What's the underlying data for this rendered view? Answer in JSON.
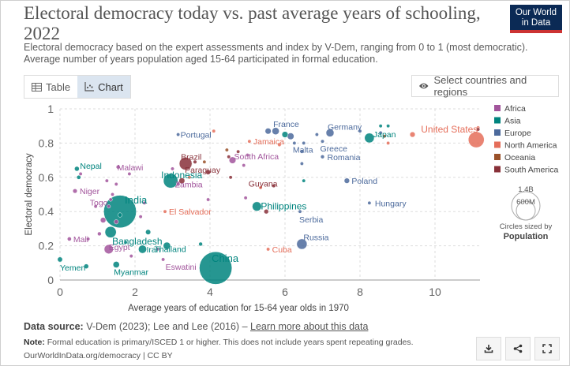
{
  "header": {
    "title": "Electoral democracy today vs. past average years of schooling, 2022",
    "subtitle_line1": "Electoral democracy based on the expert assessments and index by V-Dem, ranging from 0 to 1 (most democratic).",
    "subtitle_line2": "Average number of years population aged 15-64 participated in formal education.",
    "logo_line1": "Our World",
    "logo_line2": "in Data"
  },
  "tabs": [
    {
      "label": "Table",
      "icon": "table-icon",
      "active": false
    },
    {
      "label": "Chart",
      "icon": "chart-icon",
      "active": true
    }
  ],
  "select_countries_label": "Select countries and regions",
  "chart_data": {
    "type": "scatter",
    "xlabel": "Average years of education for 15-64 year olds in 1970",
    "ylabel": "Electoral democracy",
    "xlim": [
      0,
      11.2
    ],
    "ylim": [
      0,
      1
    ],
    "xticks": [
      0,
      2,
      4,
      6,
      8,
      10
    ],
    "yticks": [
      0,
      0.2,
      0.4,
      0.6,
      0.8,
      1
    ],
    "grid": true,
    "legend_position": "right",
    "colors": {
      "Africa": "#a2559c",
      "Asia": "#00847e",
      "Europe": "#4c6a9c",
      "North America": "#e56e5a",
      "Oceania": "#9a5129",
      "South America": "#883039"
    },
    "legend": [
      "Africa",
      "Asia",
      "Europe",
      "North America",
      "Oceania",
      "South America"
    ],
    "size_legend": {
      "value_large": "1.4B",
      "value_small": "600M",
      "caption": "Circles sized by",
      "caption_bold": "Population"
    },
    "points": [
      {
        "x": 11.1,
        "y": 0.82,
        "region": "North America",
        "label": "United States",
        "pop": 333
      },
      {
        "x": 9.4,
        "y": 0.85,
        "region": "North America",
        "pop": 38
      },
      {
        "x": 11.15,
        "y": 0.89,
        "region": "North America",
        "pop": 5
      },
      {
        "x": 4.15,
        "y": 0.07,
        "region": "Asia",
        "label": "China",
        "pop": 1410
      },
      {
        "x": 1.6,
        "y": 0.4,
        "region": "Asia",
        "label": "India",
        "pop": 1410
      },
      {
        "x": 1.6,
        "y": 0.38,
        "region": "Asia",
        "pop": 25
      },
      {
        "x": 1.35,
        "y": 0.28,
        "region": "Asia",
        "label": "Bangladesh",
        "pop": 170
      },
      {
        "x": 1.35,
        "y": 0.47,
        "region": "Africa",
        "pop": 5
      },
      {
        "x": 2.35,
        "y": 0.28,
        "region": "Asia",
        "pop": 35
      },
      {
        "x": 2.95,
        "y": 0.58,
        "region": "Asia",
        "label": "Indonesia",
        "pop": 275
      },
      {
        "x": 2.85,
        "y": 0.2,
        "region": "Asia",
        "label": "Thailand",
        "pop": 70
      },
      {
        "x": 5.25,
        "y": 0.43,
        "region": "Asia",
        "label": "Philippines",
        "pop": 115
      },
      {
        "x": 8.25,
        "y": 0.83,
        "region": "Asia",
        "label": "Japan",
        "pop": 125
      },
      {
        "x": 6.0,
        "y": 0.85,
        "region": "Asia",
        "pop": 50
      },
      {
        "x": 2.2,
        "y": 0.18,
        "region": "Asia",
        "label": "Iran",
        "pop": 88
      },
      {
        "x": 1.5,
        "y": 0.09,
        "region": "Asia",
        "label": "Myanmar",
        "pop": 54
      },
      {
        "x": 0.0,
        "y": 0.12,
        "region": "Asia",
        "label": "Yemen",
        "pop": 33
      },
      {
        "x": 0.7,
        "y": 0.08,
        "region": "Asia",
        "pop": 30
      },
      {
        "x": 0.45,
        "y": 0.65,
        "region": "Asia",
        "label": "Nepal",
        "pop": 30
      },
      {
        "x": 0.5,
        "y": 0.6,
        "region": "Asia",
        "pop": 22
      },
      {
        "x": 3.75,
        "y": 0.21,
        "region": "Asia",
        "pop": 20
      },
      {
        "x": 1.75,
        "y": 0.22,
        "region": "Asia",
        "pop": 10
      },
      {
        "x": 8.55,
        "y": 0.9,
        "region": "Asia",
        "pop": 8
      },
      {
        "x": 8.75,
        "y": 0.9,
        "region": "Asia",
        "pop": 5
      },
      {
        "x": 6.5,
        "y": 0.58,
        "region": "Asia",
        "pop": 10
      },
      {
        "x": 6.45,
        "y": 0.21,
        "region": "Europe",
        "label": "Russia",
        "pop": 144
      },
      {
        "x": 5.75,
        "y": 0.87,
        "region": "Europe",
        "label": "France",
        "pop": 68
      },
      {
        "x": 5.55,
        "y": 0.87,
        "region": "Europe",
        "pop": 48
      },
      {
        "x": 7.2,
        "y": 0.86,
        "region": "Europe",
        "label": "Germany",
        "pop": 84
      },
      {
        "x": 6.15,
        "y": 0.84,
        "region": "Europe",
        "pop": 60
      },
      {
        "x": 7.0,
        "y": 0.81,
        "region": "Europe",
        "label": "Greece",
        "pop": 10
      },
      {
        "x": 7.0,
        "y": 0.72,
        "region": "Europe",
        "label": "Romania",
        "pop": 19
      },
      {
        "x": 7.65,
        "y": 0.58,
        "region": "Europe",
        "label": "Poland",
        "pop": 38
      },
      {
        "x": 8.25,
        "y": 0.45,
        "region": "Europe",
        "label": "Hungary",
        "pop": 10
      },
      {
        "x": 6.25,
        "y": 0.8,
        "region": "Europe",
        "label": "Malta",
        "pop": 1
      },
      {
        "x": 6.5,
        "y": 0.8,
        "region": "Europe",
        "pop": 9
      },
      {
        "x": 6.4,
        "y": 0.4,
        "region": "Europe",
        "label": "Serbia",
        "pop": 7
      },
      {
        "x": 3.15,
        "y": 0.85,
        "region": "Europe",
        "label": "Portugal",
        "pop": 10
      },
      {
        "x": 4.1,
        "y": 0.87,
        "region": "North America",
        "pop": 1
      },
      {
        "x": 6.45,
        "y": 0.68,
        "region": "Europe",
        "pop": 5
      },
      {
        "x": 6.45,
        "y": 0.75,
        "region": "Europe",
        "pop": 4
      },
      {
        "x": 8.0,
        "y": 0.87,
        "region": "Europe",
        "pop": 5
      },
      {
        "x": 8.55,
        "y": 0.86,
        "region": "Europe",
        "pop": 4
      },
      {
        "x": 6.85,
        "y": 0.85,
        "region": "Europe",
        "pop": 5
      },
      {
        "x": 5.05,
        "y": 0.81,
        "region": "North America",
        "label": "Jamaica",
        "pop": 3
      },
      {
        "x": 5.35,
        "y": 0.54,
        "region": "North America",
        "pop": 2
      },
      {
        "x": 5.85,
        "y": 0.79,
        "region": "North America",
        "pop": 2
      },
      {
        "x": 8.75,
        "y": 0.8,
        "region": "North America",
        "pop": 3
      },
      {
        "x": 2.8,
        "y": 0.4,
        "region": "North America",
        "label": "El Salvador",
        "pop": 6
      },
      {
        "x": 5.55,
        "y": 0.18,
        "region": "North America",
        "label": "Cuba",
        "pop": 11
      },
      {
        "x": 3.45,
        "y": 0.6,
        "region": "North America",
        "pop": 4
      },
      {
        "x": 3.35,
        "y": 0.68,
        "region": "South America",
        "label": "Brazil",
        "pop": 215
      },
      {
        "x": 3.95,
        "y": 0.63,
        "region": "South America",
        "pop": 33
      },
      {
        "x": 3.25,
        "y": 0.58,
        "region": "South America",
        "pop": 46
      },
      {
        "x": 4.55,
        "y": 0.6,
        "region": "South America",
        "label": "Paraguay",
        "pop": 7
      },
      {
        "x": 5.7,
        "y": 0.55,
        "region": "South America",
        "label": "Guyana",
        "pop": 1
      },
      {
        "x": 4.5,
        "y": 0.72,
        "region": "South America",
        "pop": 10
      },
      {
        "x": 3.6,
        "y": 0.69,
        "region": "South America",
        "pop": 18
      },
      {
        "x": 5.5,
        "y": 0.4,
        "region": "South America",
        "pop": 28
      },
      {
        "x": 4.75,
        "y": 0.75,
        "region": "South America",
        "pop": 3
      },
      {
        "x": 4.6,
        "y": 0.7,
        "region": "Africa",
        "label": "South Africa",
        "pop": 60
      },
      {
        "x": 3.15,
        "y": 0.56,
        "region": "Africa",
        "label": "Zambia",
        "pop": 20
      },
      {
        "x": 1.55,
        "y": 0.66,
        "region": "Africa",
        "label": "Malawi",
        "pop": 20
      },
      {
        "x": 0.4,
        "y": 0.52,
        "region": "Africa",
        "label": "Niger",
        "pop": 26
      },
      {
        "x": 1.3,
        "y": 0.43,
        "region": "Africa",
        "label": "Togo",
        "pop": 9
      },
      {
        "x": 0.25,
        "y": 0.24,
        "region": "Africa",
        "label": "Mali",
        "pop": 22
      },
      {
        "x": 1.3,
        "y": 0.18,
        "region": "Africa",
        "label": "Egypt",
        "pop": 111
      },
      {
        "x": 2.75,
        "y": 0.12,
        "region": "Africa",
        "label": "Eswatini",
        "pop": 1
      },
      {
        "x": 1.15,
        "y": 0.35,
        "region": "Africa",
        "pop": 40
      },
      {
        "x": 1.05,
        "y": 0.27,
        "region": "Africa",
        "pop": 20
      },
      {
        "x": 1.5,
        "y": 0.34,
        "region": "Africa",
        "pop": 25
      },
      {
        "x": 0.95,
        "y": 0.43,
        "region": "Africa",
        "pop": 15
      },
      {
        "x": 1.4,
        "y": 0.5,
        "region": "Africa",
        "pop": 12
      },
      {
        "x": 1.25,
        "y": 0.58,
        "region": "Africa",
        "pop": 8
      },
      {
        "x": 1.5,
        "y": 0.56,
        "region": "Africa",
        "pop": 6
      },
      {
        "x": 2.25,
        "y": 0.45,
        "region": "Africa",
        "pop": 10
      },
      {
        "x": 2.6,
        "y": 0.18,
        "region": "Africa",
        "pop": 8
      },
      {
        "x": 1.9,
        "y": 0.14,
        "region": "Africa",
        "pop": 6
      },
      {
        "x": 0.75,
        "y": 0.24,
        "region": "Africa",
        "pop": 12
      },
      {
        "x": 0.55,
        "y": 0.62,
        "region": "Africa",
        "pop": 4
      },
      {
        "x": 3.0,
        "y": 0.65,
        "region": "Africa",
        "pop": 6
      },
      {
        "x": 2.15,
        "y": 0.37,
        "region": "Africa",
        "pop": 4
      },
      {
        "x": 4.95,
        "y": 0.48,
        "region": "Africa",
        "pop": 3
      },
      {
        "x": 4.9,
        "y": 0.67,
        "region": "Africa",
        "pop": 4
      },
      {
        "x": 5.0,
        "y": 0.73,
        "region": "Africa",
        "pop": 2
      },
      {
        "x": 1.85,
        "y": 0.62,
        "region": "Africa",
        "pop": 5
      },
      {
        "x": 3.95,
        "y": 0.47,
        "region": "Africa",
        "pop": 3
      },
      {
        "x": 4.45,
        "y": 0.76,
        "region": "Oceania",
        "pop": 3
      },
      {
        "x": 8.65,
        "y": 0.84,
        "region": "Oceania",
        "pop": 3
      },
      {
        "x": 3.85,
        "y": 0.69,
        "region": "Oceania",
        "pop": 2
      },
      {
        "x": 11.15,
        "y": 0.88,
        "region": "South America",
        "pop": 3
      }
    ]
  },
  "footer": {
    "source_label": "Data source:",
    "source_text": "V-Dem (2023); Lee and Lee (2016) –",
    "source_link": "Learn more about this data",
    "note_label": "Note:",
    "note_text": "Formal education is primary/ISCED 1 or higher. This does not include years spent repeating grades.",
    "url": "OurWorldInData.org/democracy | CC BY"
  },
  "actions": [
    {
      "name": "download-button",
      "icon": "download-icon"
    },
    {
      "name": "share-button",
      "icon": "share-icon"
    },
    {
      "name": "fullscreen-button",
      "icon": "fullscreen-icon"
    }
  ]
}
